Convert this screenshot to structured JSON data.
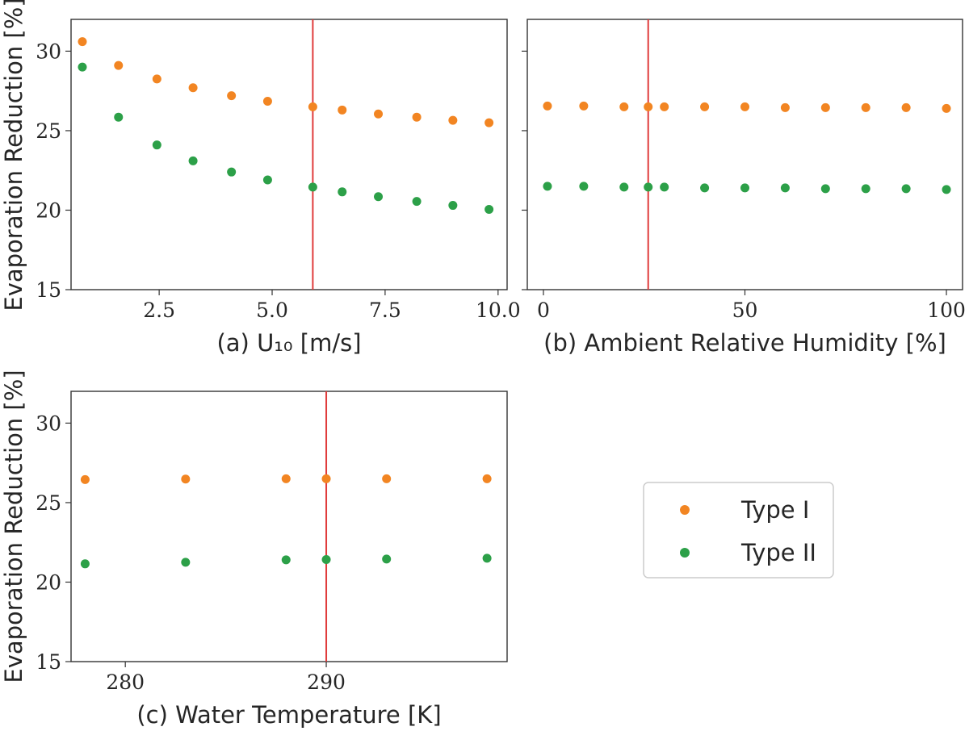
{
  "colors": {
    "type1": "#f28522",
    "type2": "#2ca048",
    "reference_line": "#e03b3b",
    "axes": "#333333"
  },
  "legend": {
    "placement": "lower-right",
    "entries": [
      {
        "label": "Type I",
        "color": "#f28522"
      },
      {
        "label": "Type II",
        "color": "#2ca048"
      }
    ]
  },
  "chart_data": [
    {
      "type": "scatter",
      "xlabel": "(a) U₁₀ [m/s]",
      "ylabel": "Evaporation Reduction [%]",
      "xlim": [
        0.55,
        10.2
      ],
      "ylim": [
        15,
        32
      ],
      "xticks": [
        {
          "value": 2.5,
          "label": "2.5"
        },
        {
          "value": 5.0,
          "label": "5.0"
        },
        {
          "value": 7.5,
          "label": "7.5"
        },
        {
          "value": 10.0,
          "label": "10.0"
        }
      ],
      "yticks": [
        {
          "value": 15,
          "label": "15"
        },
        {
          "value": 20,
          "label": "20"
        },
        {
          "value": 25,
          "label": "25"
        },
        {
          "value": 30,
          "label": "30"
        }
      ],
      "show_ytick_labels": true,
      "reference_line_x": 5.9,
      "series": [
        {
          "name": "Type I",
          "color": "#f28522",
          "x": [
            0.8,
            1.6,
            2.45,
            3.25,
            4.1,
            4.9,
            5.9,
            6.55,
            7.35,
            8.2,
            9.0,
            9.8
          ],
          "y": [
            30.6,
            29.1,
            28.25,
            27.7,
            27.2,
            26.85,
            26.5,
            26.3,
            26.05,
            25.85,
            25.65,
            25.5
          ]
        },
        {
          "name": "Type II",
          "color": "#2ca048",
          "x": [
            0.8,
            1.6,
            2.45,
            3.25,
            4.1,
            4.9,
            5.9,
            6.55,
            7.35,
            8.2,
            9.0,
            9.8
          ],
          "y": [
            29.0,
            25.85,
            24.1,
            23.1,
            22.4,
            21.9,
            21.45,
            21.15,
            20.85,
            20.55,
            20.3,
            20.05
          ]
        }
      ]
    },
    {
      "type": "scatter",
      "xlabel": "(b) Ambient Relative Humidity [%]",
      "ylabel": "",
      "xlim": [
        -4,
        104
      ],
      "ylim": [
        15,
        32
      ],
      "xticks": [
        {
          "value": 0,
          "label": "0"
        },
        {
          "value": 50,
          "label": "50"
        },
        {
          "value": 100,
          "label": "100"
        }
      ],
      "yticks": [
        {
          "value": 15,
          "label": ""
        },
        {
          "value": 20,
          "label": ""
        },
        {
          "value": 25,
          "label": ""
        },
        {
          "value": 30,
          "label": ""
        }
      ],
      "show_ytick_labels": false,
      "reference_line_x": 26,
      "series": [
        {
          "name": "Type I",
          "color": "#f28522",
          "x": [
            1,
            10,
            20,
            26,
            30,
            40,
            50,
            60,
            70,
            80,
            90,
            100
          ],
          "y": [
            26.55,
            26.55,
            26.5,
            26.5,
            26.5,
            26.5,
            26.5,
            26.45,
            26.45,
            26.45,
            26.45,
            26.4
          ]
        },
        {
          "name": "Type II",
          "color": "#2ca048",
          "x": [
            1,
            10,
            20,
            26,
            30,
            40,
            50,
            60,
            70,
            80,
            90,
            100
          ],
          "y": [
            21.5,
            21.5,
            21.45,
            21.45,
            21.45,
            21.4,
            21.4,
            21.4,
            21.35,
            21.35,
            21.35,
            21.3
          ]
        }
      ]
    },
    {
      "type": "scatter",
      "xlabel": "(c) Water Temperature [K]",
      "ylabel": "Evaporation Reduction [%]",
      "xlim": [
        277.3,
        299.0
      ],
      "ylim": [
        15,
        32
      ],
      "xticks": [
        {
          "value": 280,
          "label": "280"
        },
        {
          "value": 290,
          "label": "290"
        }
      ],
      "yticks": [
        {
          "value": 15,
          "label": "15"
        },
        {
          "value": 20,
          "label": "20"
        },
        {
          "value": 25,
          "label": "25"
        },
        {
          "value": 30,
          "label": "30"
        }
      ],
      "show_ytick_labels": true,
      "reference_line_x": 290,
      "series": [
        {
          "name": "Type I",
          "color": "#f28522",
          "x": [
            278,
            283,
            288,
            290,
            293,
            298
          ],
          "y": [
            26.45,
            26.48,
            26.5,
            26.5,
            26.5,
            26.5
          ]
        },
        {
          "name": "Type II",
          "color": "#2ca048",
          "x": [
            278,
            283,
            288,
            290,
            293,
            298
          ],
          "y": [
            21.15,
            21.25,
            21.4,
            21.42,
            21.45,
            21.5
          ]
        }
      ]
    }
  ]
}
